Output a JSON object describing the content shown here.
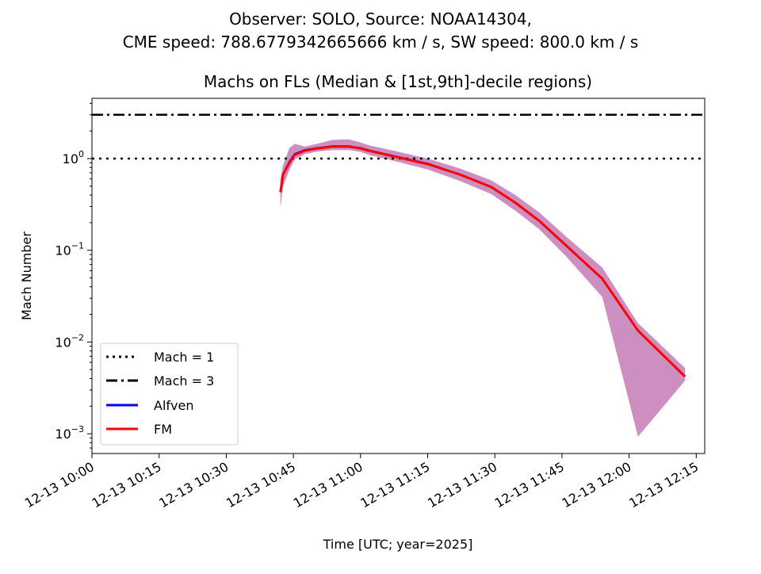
{
  "chart_data": {
    "type": "line",
    "suptitle": [
      "Observer: SOLO, Source: NOAA14304,",
      "CME speed: 788.6779342665666 km / s, SW speed: 800.0 km / s"
    ],
    "title": "Machs on FLs (Median & [1st,9th]-decile regions)",
    "xlabel": "Time [UTC; year=2025]",
    "ylabel": "Mach Number",
    "yscale": "log",
    "ylim": [
      0.00061,
      4.5
    ],
    "xlim_minutes_after_1000": [
      0,
      137
    ],
    "x_ticks": [
      {
        "m": 0,
        "label": "12-13 10:00"
      },
      {
        "m": 15,
        "label": "12-13 10:15"
      },
      {
        "m": 30,
        "label": "12-13 10:30"
      },
      {
        "m": 45,
        "label": "12-13 10:45"
      },
      {
        "m": 60,
        "label": "12-13 11:00"
      },
      {
        "m": 75,
        "label": "12-13 11:15"
      },
      {
        "m": 90,
        "label": "12-13 11:30"
      },
      {
        "m": 105,
        "label": "12-13 11:45"
      },
      {
        "m": 120,
        "label": "12-13 12:00"
      },
      {
        "m": 135,
        "label": "12-13 12:15"
      }
    ],
    "y_ticks": [
      {
        "v": 1,
        "base": "10",
        "exp": "0"
      },
      {
        "v": 0.1,
        "base": "10",
        "exp": "−1"
      },
      {
        "v": 0.01,
        "base": "10",
        "exp": "−2"
      },
      {
        "v": 0.001,
        "base": "10",
        "exp": "−3"
      }
    ],
    "hlines": [
      {
        "name": "Mach = 1",
        "value": 1,
        "style": "dotted"
      },
      {
        "name": "Mach = 3",
        "value": 3,
        "style": "dashdot"
      }
    ],
    "x_minutes": [
      42.1,
      42.7,
      44.1,
      45.3,
      47.6,
      50.3,
      53.8,
      57.4,
      60,
      61.8,
      68,
      75,
      82.2,
      89.2,
      94.6,
      99.9,
      106,
      114,
      122,
      132.5
    ],
    "series": [
      {
        "name": "Alfven",
        "color": "#0000ff",
        "values": [
          0.43,
          0.67,
          0.92,
          1.12,
          1.24,
          1.3,
          1.36,
          1.36,
          1.3,
          1.23,
          1.05,
          0.88,
          0.67,
          0.49,
          0.33,
          0.21,
          0.112,
          0.049,
          0.0133,
          0.0042
        ]
      },
      {
        "name": "FM",
        "color": "#ff0000",
        "values": [
          0.43,
          0.67,
          0.9,
          1.1,
          1.22,
          1.29,
          1.35,
          1.35,
          1.29,
          1.22,
          1.04,
          0.87,
          0.67,
          0.49,
          0.33,
          0.21,
          0.112,
          0.049,
          0.0133,
          0.0042
        ]
      }
    ],
    "band": {
      "color": "#cd8fc0",
      "lower": [
        0.29,
        0.5,
        0.75,
        0.98,
        1.12,
        1.19,
        1.24,
        1.24,
        1.18,
        1.1,
        0.93,
        0.76,
        0.57,
        0.41,
        0.27,
        0.17,
        0.085,
        0.031,
        0.00093,
        0.0038
      ],
      "upper": [
        0.6,
        0.85,
        1.3,
        1.45,
        1.35,
        1.45,
        1.6,
        1.62,
        1.5,
        1.4,
        1.2,
        1.0,
        0.78,
        0.58,
        0.4,
        0.26,
        0.14,
        0.065,
        0.016,
        0.0052
      ]
    },
    "legend": {
      "placement": "lower-left",
      "entries": [
        "Mach = 1",
        "Mach = 3",
        "Alfven",
        "FM"
      ]
    }
  }
}
